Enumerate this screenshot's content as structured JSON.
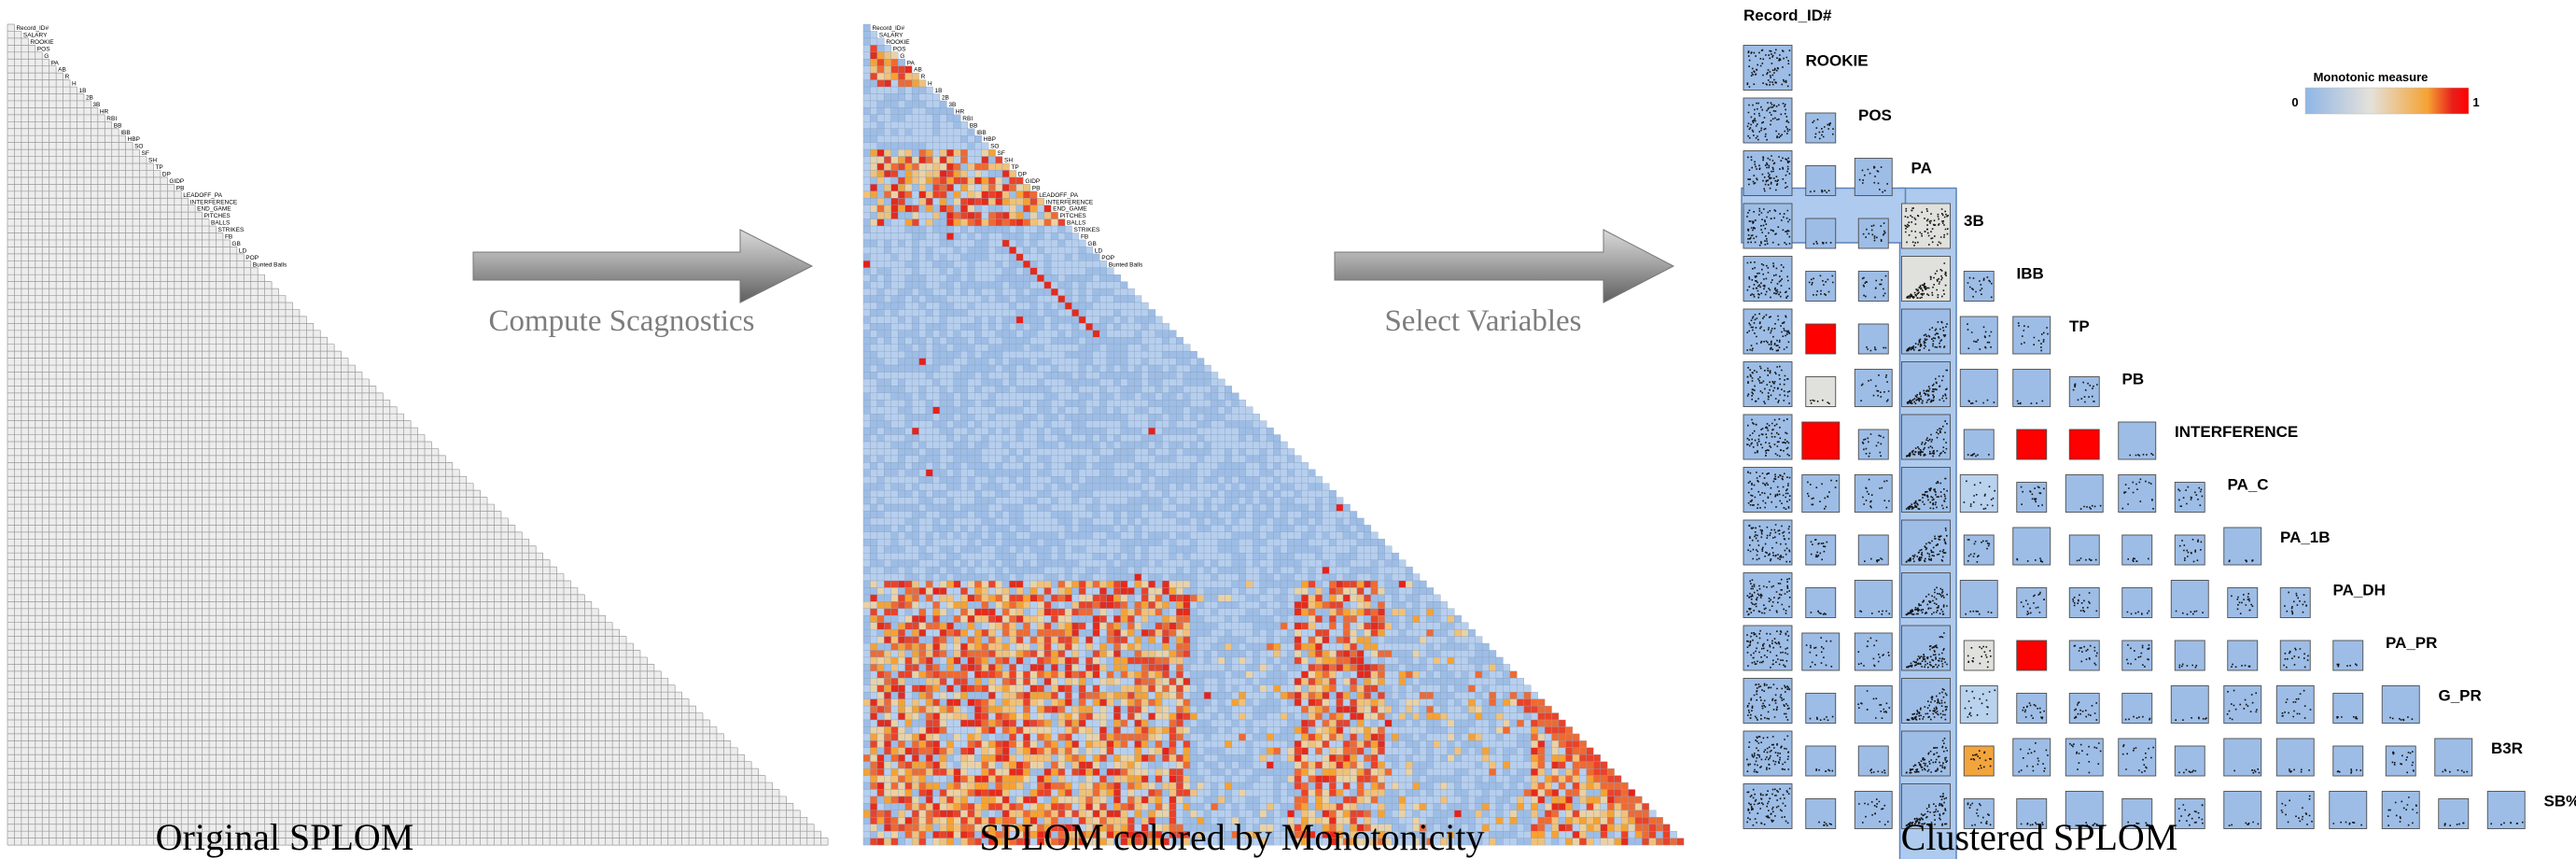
{
  "panels": {
    "original": {
      "caption": "Original SPLOM"
    },
    "monotonic": {
      "caption": "SPLOM colored by Monotonicity"
    },
    "clustered": {
      "caption": "Clustered SPLOM"
    }
  },
  "arrows": [
    {
      "label": "Compute Scagnostics"
    },
    {
      "label": "Select Variables"
    }
  ],
  "legend": {
    "title": "Monotonic measure",
    "min_label": "0",
    "max_label": "1",
    "colors": [
      "#8fb6e6",
      "#e4e1da",
      "#f5a233",
      "#e8201a",
      "#ff0000"
    ]
  },
  "original_variable_labels": [
    "Record_ID#",
    "SALARY",
    "ROOKIE",
    "POS",
    "G",
    "PA",
    "AB",
    "R",
    "H",
    "1B",
    "2B",
    "3B",
    "HR",
    "RBI",
    "BB",
    "IBB",
    "HBP",
    "SO",
    "SF",
    "SH",
    "TP",
    "DP",
    "GIDP",
    "PB",
    "LEADOFF_PA",
    "INTERFERENCE",
    "END_GAME",
    "PITCHES",
    "BALLS",
    "STRIKES",
    "FB",
    "GB",
    "LD",
    "POP",
    "Bunted Balls"
  ],
  "clustered_variables": [
    "Record_ID#",
    "ROOKIE",
    "POS",
    "PA",
    "3B",
    "IBB",
    "TP",
    "PB",
    "INTERFERENCE",
    "PA_C",
    "PA_1B",
    "PA_DH",
    "PA_PR",
    "G_PR",
    "B3R",
    "SB%"
  ]
}
